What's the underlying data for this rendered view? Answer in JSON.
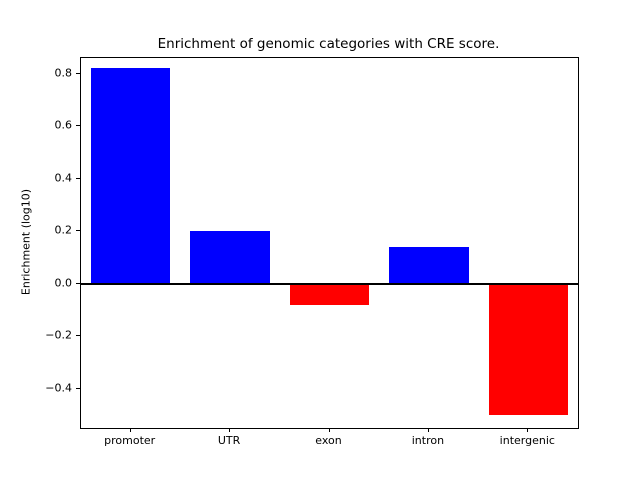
{
  "chart_data": {
    "type": "bar",
    "title": "Enrichment of genomic categories with CRE score.",
    "xlabel": "",
    "ylabel": "Enrichment (log10)",
    "categories": [
      "promoter",
      "UTR",
      "exon",
      "intron",
      "intergenic"
    ],
    "values": [
      0.82,
      0.2,
      -0.08,
      0.14,
      -0.5
    ],
    "positive_color": "#0000ff",
    "negative_color": "#ff0000",
    "bar_colors": [
      "#0000ff",
      "#0000ff",
      "#ff0000",
      "#0000ff",
      "#ff0000"
    ],
    "ylim": [
      -0.55,
      0.86
    ],
    "yticks": [
      -0.4,
      -0.2,
      0.0,
      0.2,
      0.4,
      0.6,
      0.8
    ],
    "zero_line": true,
    "grid": false,
    "legend": "none"
  }
}
